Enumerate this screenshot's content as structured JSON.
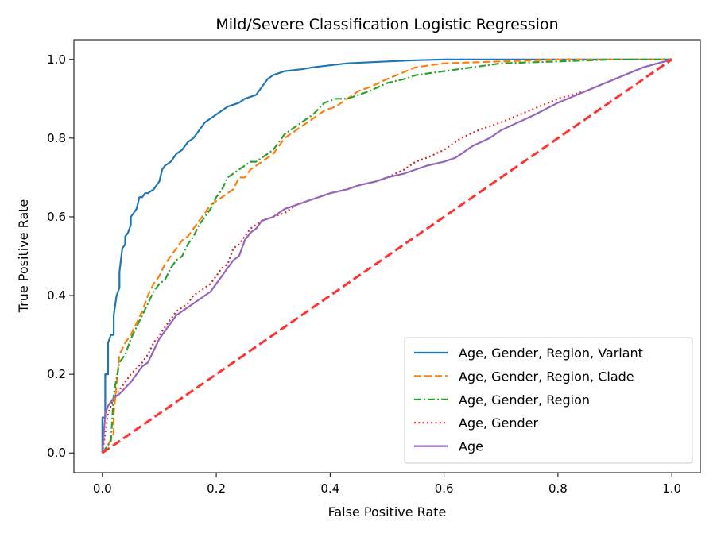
{
  "chart_data": {
    "type": "line",
    "title": "Mild/Severe Classification Logistic Regression",
    "xlabel": "False Positive Rate",
    "ylabel": "True Positive Rate",
    "xlim": [
      -0.05,
      1.05
    ],
    "ylim": [
      -0.05,
      1.05
    ],
    "xticks": [
      0.0,
      0.2,
      0.4,
      0.6,
      0.8,
      1.0
    ],
    "yticks": [
      0.0,
      0.2,
      0.4,
      0.6,
      0.8,
      1.0
    ],
    "xtick_labels": [
      "0.0",
      "0.2",
      "0.4",
      "0.6",
      "0.8",
      "1.0"
    ],
    "ytick_labels": [
      "0.0",
      "0.2",
      "0.4",
      "0.6",
      "0.8",
      "1.0"
    ],
    "legend_position": "lower-right",
    "series": [
      {
        "name": "Age, Gender, Region, Variant",
        "color": "#1f77b4",
        "dash": "solid",
        "x": [
          0,
          0,
          0.005,
          0.005,
          0.01,
          0.01,
          0.015,
          0.02,
          0.02,
          0.025,
          0.03,
          0.03,
          0.035,
          0.04,
          0.04,
          0.045,
          0.05,
          0.05,
          0.055,
          0.06,
          0.065,
          0.07,
          0.075,
          0.08,
          0.09,
          0.1,
          0.105,
          0.11,
          0.12,
          0.13,
          0.14,
          0.15,
          0.16,
          0.17,
          0.18,
          0.19,
          0.2,
          0.22,
          0.24,
          0.25,
          0.27,
          0.28,
          0.29,
          0.3,
          0.32,
          0.35,
          0.37,
          0.4,
          0.43,
          0.5,
          0.55,
          0.6,
          1.0
        ],
        "y": [
          0,
          0.09,
          0.09,
          0.2,
          0.2,
          0.28,
          0.3,
          0.3,
          0.35,
          0.4,
          0.42,
          0.46,
          0.52,
          0.53,
          0.55,
          0.56,
          0.58,
          0.6,
          0.61,
          0.62,
          0.65,
          0.65,
          0.66,
          0.66,
          0.67,
          0.69,
          0.72,
          0.73,
          0.74,
          0.76,
          0.77,
          0.79,
          0.8,
          0.82,
          0.84,
          0.85,
          0.86,
          0.88,
          0.89,
          0.9,
          0.91,
          0.93,
          0.95,
          0.96,
          0.97,
          0.975,
          0.98,
          0.985,
          0.99,
          0.995,
          0.998,
          1.0,
          1.0
        ]
      },
      {
        "name": "Age, Gender, Region, Clade",
        "color": "#ff7f0e",
        "dash": "dashed",
        "x": [
          0,
          0.01,
          0.02,
          0.02,
          0.03,
          0.04,
          0.05,
          0.06,
          0.07,
          0.08,
          0.09,
          0.1,
          0.11,
          0.12,
          0.13,
          0.14,
          0.15,
          0.16,
          0.17,
          0.18,
          0.19,
          0.2,
          0.21,
          0.22,
          0.23,
          0.24,
          0.25,
          0.26,
          0.27,
          0.28,
          0.29,
          0.3,
          0.31,
          0.32,
          0.33,
          0.34,
          0.35,
          0.37,
          0.39,
          0.41,
          0.43,
          0.45,
          0.47,
          0.5,
          0.55,
          0.6,
          0.7,
          0.8,
          0.9,
          1.0
        ],
        "y": [
          0,
          0.02,
          0.05,
          0.1,
          0.25,
          0.28,
          0.3,
          0.33,
          0.36,
          0.4,
          0.43,
          0.45,
          0.48,
          0.5,
          0.52,
          0.54,
          0.55,
          0.57,
          0.59,
          0.61,
          0.63,
          0.64,
          0.65,
          0.66,
          0.67,
          0.7,
          0.7,
          0.72,
          0.73,
          0.74,
          0.75,
          0.76,
          0.78,
          0.8,
          0.81,
          0.82,
          0.83,
          0.85,
          0.87,
          0.88,
          0.9,
          0.92,
          0.93,
          0.95,
          0.98,
          0.99,
          0.995,
          1.0,
          1.0,
          1.0
        ]
      },
      {
        "name": "Age, Gender, Region",
        "color": "#2ca02c",
        "dash": "dashdot",
        "x": [
          0,
          0.015,
          0.02,
          0.03,
          0.04,
          0.05,
          0.06,
          0.07,
          0.08,
          0.09,
          0.1,
          0.11,
          0.12,
          0.13,
          0.14,
          0.15,
          0.16,
          0.17,
          0.18,
          0.19,
          0.2,
          0.21,
          0.22,
          0.23,
          0.24,
          0.25,
          0.26,
          0.27,
          0.28,
          0.29,
          0.3,
          0.31,
          0.32,
          0.33,
          0.35,
          0.37,
          0.39,
          0.41,
          0.43,
          0.45,
          0.47,
          0.5,
          0.53,
          0.55,
          0.6,
          0.65,
          0.7,
          0.8,
          0.9,
          1.0
        ],
        "y": [
          0,
          0.03,
          0.15,
          0.23,
          0.25,
          0.29,
          0.32,
          0.35,
          0.38,
          0.41,
          0.43,
          0.44,
          0.47,
          0.49,
          0.5,
          0.53,
          0.55,
          0.58,
          0.6,
          0.62,
          0.65,
          0.67,
          0.7,
          0.71,
          0.72,
          0.73,
          0.74,
          0.74,
          0.75,
          0.76,
          0.77,
          0.79,
          0.81,
          0.82,
          0.84,
          0.86,
          0.89,
          0.9,
          0.9,
          0.91,
          0.92,
          0.94,
          0.95,
          0.96,
          0.97,
          0.98,
          0.99,
          0.995,
          1.0,
          1.0
        ]
      },
      {
        "name": "Age, Gender",
        "color": "#d62728",
        "dash": "dotted",
        "x": [
          0,
          0.005,
          0.01,
          0.02,
          0.03,
          0.05,
          0.07,
          0.08,
          0.09,
          0.1,
          0.11,
          0.12,
          0.13,
          0.14,
          0.15,
          0.16,
          0.17,
          0.18,
          0.19,
          0.2,
          0.21,
          0.22,
          0.23,
          0.24,
          0.25,
          0.26,
          0.27,
          0.28,
          0.3,
          0.32,
          0.34,
          0.36,
          0.38,
          0.4,
          0.43,
          0.45,
          0.48,
          0.5,
          0.53,
          0.55,
          0.57,
          0.6,
          0.63,
          0.66,
          0.7,
          0.75,
          0.8,
          0.85,
          0.9,
          0.95,
          1.0
        ],
        "y": [
          0,
          0.05,
          0.1,
          0.14,
          0.16,
          0.2,
          0.23,
          0.25,
          0.28,
          0.3,
          0.32,
          0.34,
          0.36,
          0.37,
          0.38,
          0.4,
          0.41,
          0.42,
          0.43,
          0.45,
          0.47,
          0.48,
          0.52,
          0.53,
          0.55,
          0.57,
          0.58,
          0.59,
          0.6,
          0.61,
          0.63,
          0.64,
          0.65,
          0.66,
          0.67,
          0.68,
          0.69,
          0.7,
          0.72,
          0.74,
          0.75,
          0.77,
          0.8,
          0.82,
          0.84,
          0.87,
          0.9,
          0.92,
          0.95,
          0.98,
          1.0
        ]
      },
      {
        "name": "Age",
        "color": "#9467bd",
        "dash": "solid",
        "x": [
          0,
          0.005,
          0.01,
          0.02,
          0.03,
          0.05,
          0.06,
          0.07,
          0.08,
          0.09,
          0.1,
          0.11,
          0.12,
          0.13,
          0.14,
          0.15,
          0.16,
          0.17,
          0.18,
          0.19,
          0.2,
          0.21,
          0.22,
          0.23,
          0.24,
          0.25,
          0.26,
          0.27,
          0.28,
          0.3,
          0.32,
          0.34,
          0.36,
          0.38,
          0.4,
          0.43,
          0.45,
          0.48,
          0.5,
          0.53,
          0.55,
          0.57,
          0.6,
          0.62,
          0.65,
          0.68,
          0.7,
          0.73,
          0.76,
          0.8,
          0.85,
          0.9,
          0.95,
          1.0
        ],
        "y": [
          0,
          0.1,
          0.12,
          0.14,
          0.15,
          0.18,
          0.2,
          0.22,
          0.23,
          0.26,
          0.29,
          0.31,
          0.33,
          0.35,
          0.36,
          0.37,
          0.38,
          0.39,
          0.4,
          0.41,
          0.43,
          0.45,
          0.47,
          0.49,
          0.5,
          0.54,
          0.56,
          0.57,
          0.59,
          0.6,
          0.62,
          0.63,
          0.64,
          0.65,
          0.66,
          0.67,
          0.68,
          0.69,
          0.7,
          0.71,
          0.72,
          0.73,
          0.74,
          0.75,
          0.78,
          0.8,
          0.82,
          0.84,
          0.86,
          0.89,
          0.92,
          0.95,
          0.98,
          1.0
        ]
      }
    ],
    "reference_line": {
      "name": "chance",
      "color": "#ff3333",
      "dash": "dashed",
      "x": [
        0,
        1
      ],
      "y": [
        0,
        1
      ]
    }
  }
}
